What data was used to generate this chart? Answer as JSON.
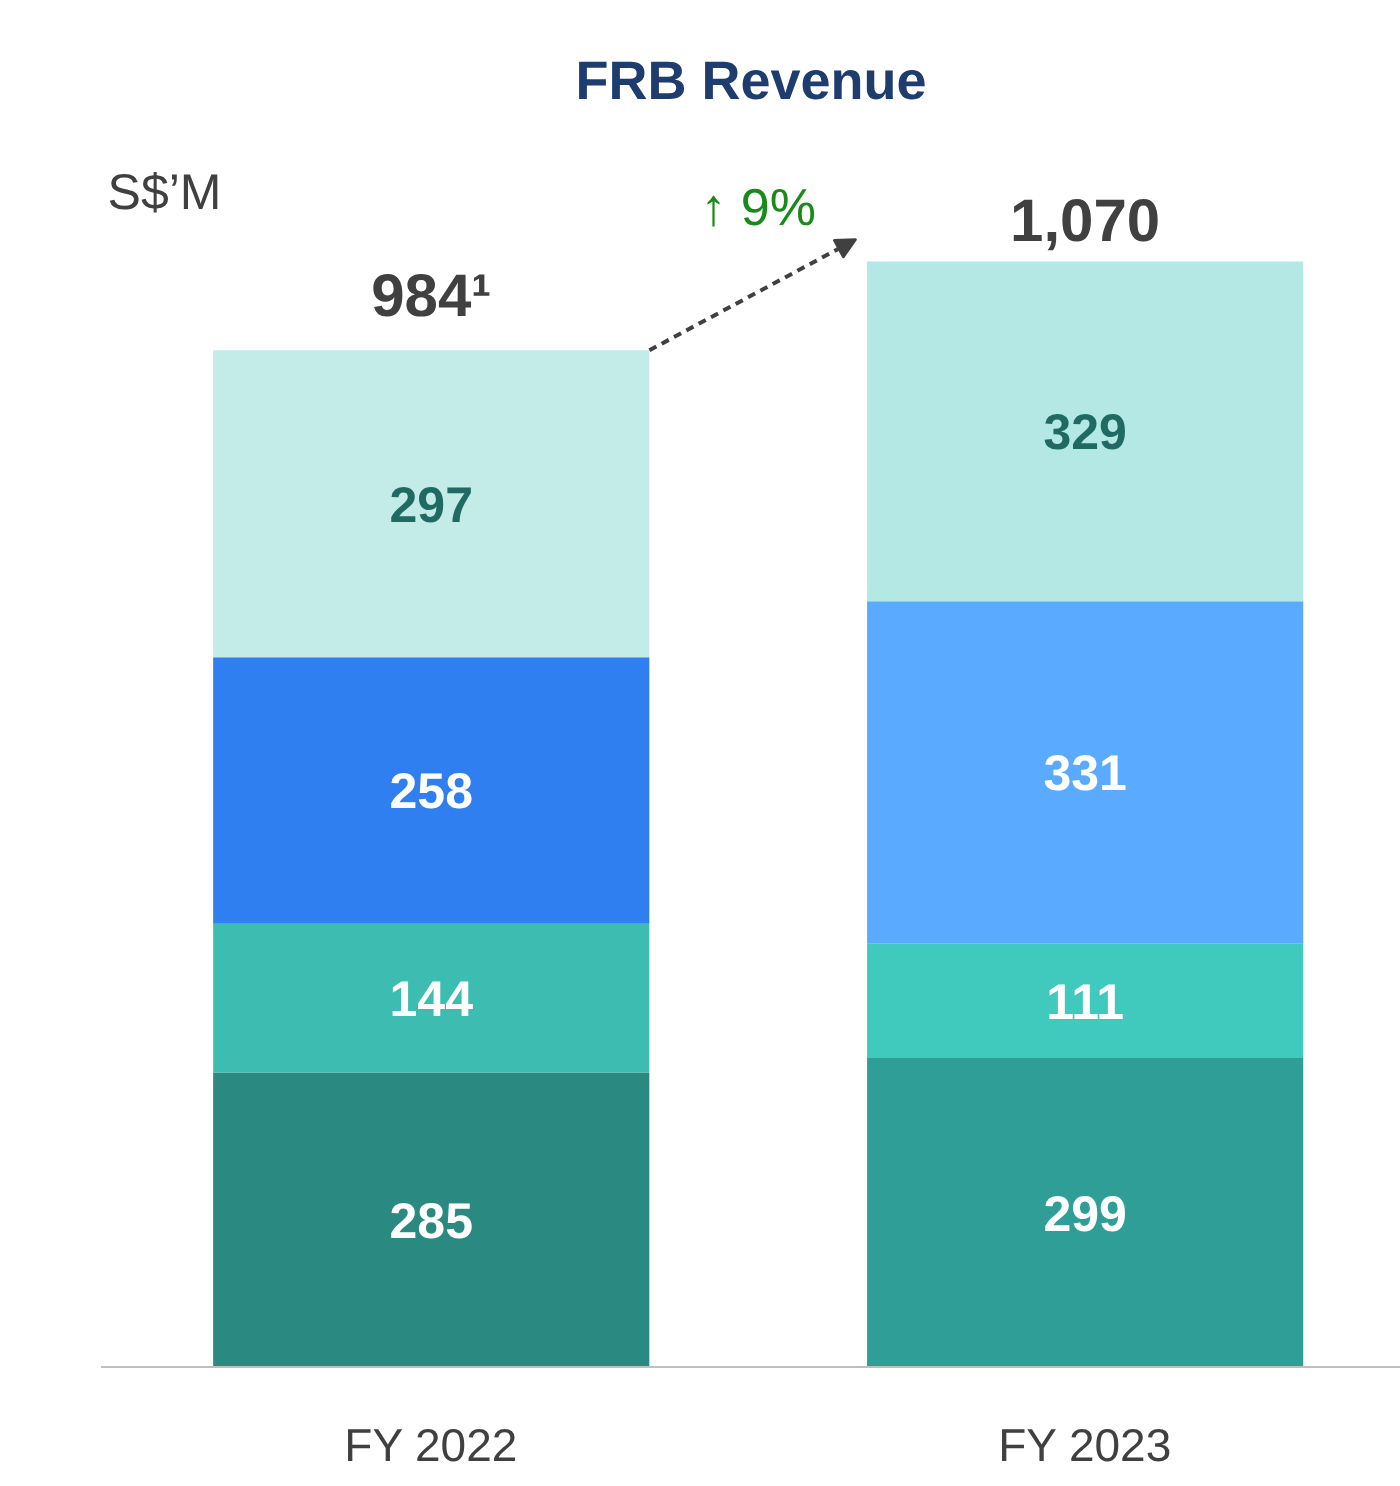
{
  "chart_data": {
    "type": "bar",
    "title": "FRB Revenue",
    "ylabel": "S$’M",
    "categories": [
      "FY 2022",
      "FY 2023"
    ],
    "stacked": true,
    "data_labels": true,
    "totals": [
      "984¹",
      "1,070"
    ],
    "annotations": [
      "↑ 9%"
    ],
    "grid": false,
    "tick_labels": "x",
    "series": [
      {
        "colors": [
          "#2a8a82",
          "#2e9e96"
        ],
        "values": [
          285,
          299
        ]
      },
      {
        "colors": [
          "#3dbdb2",
          "#40c9bd"
        ],
        "values": [
          144,
          111
        ]
      },
      {
        "colors": [
          "#2f7ff0",
          "#5aabff"
        ],
        "values": [
          258,
          331
        ]
      },
      {
        "colors": [
          "#c3ebe8",
          "#b3e8e4"
        ],
        "values": [
          297,
          329
        ]
      }
    ]
  }
}
